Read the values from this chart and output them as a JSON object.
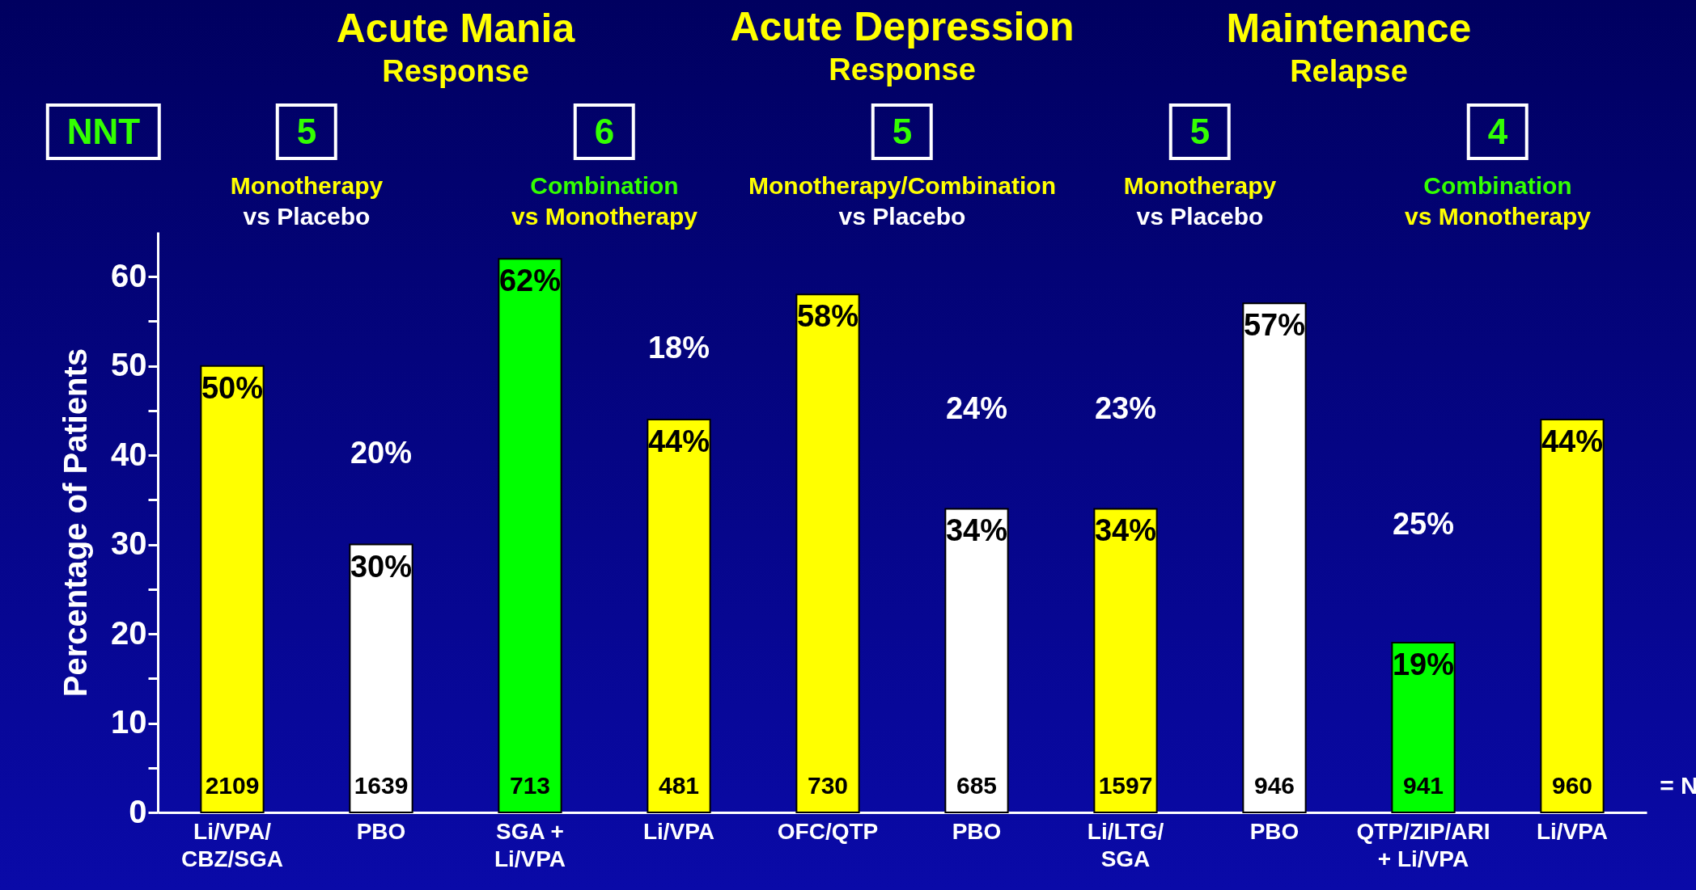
{
  "chart_data": {
    "type": "bar",
    "ylabel": "Percentage of Patients",
    "categories": [
      "Li/VPA/\nCBZ/SGA",
      "PBO",
      "SGA +\nLi/VPA",
      "Li/VPA",
      "OFC/QTP",
      "PBO",
      "Li/LTG/\nSGA",
      "PBO",
      "QTP/ZIP/ARI\n+ Li/VPA",
      "Li/VPA"
    ],
    "values": [
      50,
      30,
      62,
      44,
      58,
      34,
      34,
      57,
      19,
      44
    ],
    "colors": [
      "#ffff00",
      "#ffffff",
      "#00ff00",
      "#ffff00",
      "#ffff00",
      "#ffffff",
      "#ffff00",
      "#ffffff",
      "#00ff00",
      "#ffff00"
    ],
    "value_labels": [
      "50%",
      "30%",
      "62%",
      "44%",
      "58%",
      "34%",
      "34%",
      "57%",
      "19%",
      "44%"
    ],
    "ylim": [
      0,
      65
    ],
    "yticks": [
      0,
      {
        "value": 5,
        "label": null
      },
      10,
      {
        "value": 15,
        "label": null
      },
      20,
      {
        "value": 25,
        "label": null
      },
      30,
      {
        "value": 35,
        "label": null
      },
      40,
      {
        "value": 45,
        "label": null
      },
      50,
      {
        "value": 55,
        "label": null
      },
      60
    ],
    "grid": false,
    "annotations": [
      "Acute Mania",
      "Response",
      "Acute Depression",
      "Response",
      "Maintenance",
      "Relapse",
      "NNT",
      "5",
      "6",
      "5",
      "5",
      "4",
      "Monotherapy",
      "vs Placebo",
      "Combination",
      "vs Monotherapy",
      "Monotherapy/Combination",
      "vs Placebo",
      "Monotherapy",
      "vs Placebo",
      "Combination",
      "vs Monotherapy",
      "= N",
      "2109",
      "1639",
      "713",
      "481",
      "730",
      "685",
      "1597",
      "946",
      "941",
      "960",
      "20%",
      "18%",
      "24%",
      "23%",
      "25%"
    ]
  }
}
